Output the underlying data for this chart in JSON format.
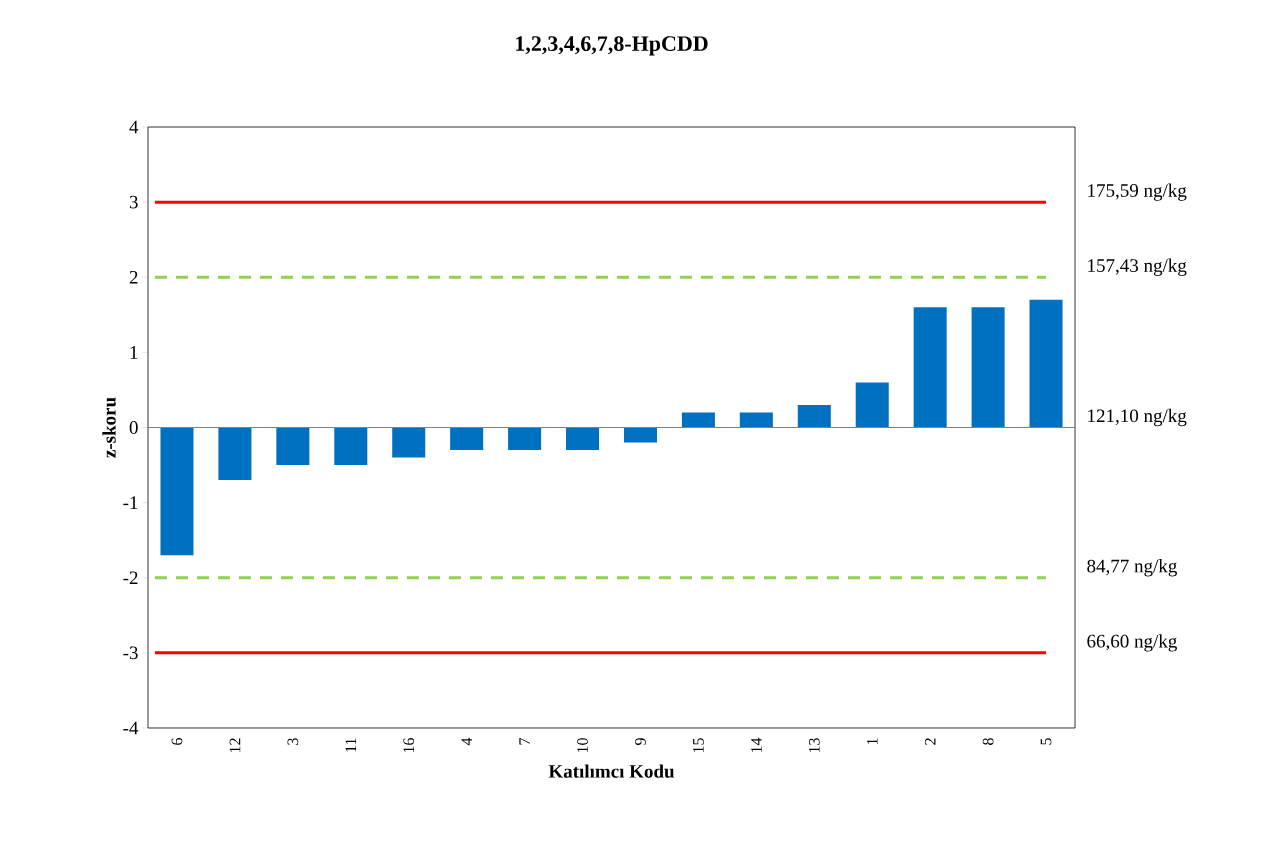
{
  "chart_data": {
    "type": "bar",
    "title": "1,2,3,4,6,7,8-HpCDD",
    "xlabel": "Katılımcı Kodu",
    "ylabel": "z-skoru",
    "categories": [
      "6",
      "12",
      "3",
      "11",
      "16",
      "4",
      "7",
      "10",
      "9",
      "15",
      "14",
      "13",
      "1",
      "2",
      "8",
      "5"
    ],
    "values": [
      -1.7,
      -0.7,
      -0.5,
      -0.5,
      -0.4,
      -0.3,
      -0.3,
      -0.3,
      -0.2,
      0.2,
      0.2,
      0.3,
      0.6,
      1.6,
      1.6,
      1.7
    ],
    "color": "#0070c0",
    "ylim": [
      -4,
      4
    ],
    "yticks": [
      -4,
      -3,
      -2,
      -1,
      0,
      1,
      2,
      3,
      4
    ],
    "ref_lines": [
      {
        "axis": "y",
        "value": 3,
        "label": "175,59 ng/kg",
        "color": "#ff0000",
        "line_style": "solid"
      },
      {
        "axis": "y",
        "value": 2,
        "label": "157,43 ng/kg",
        "color": "#92d050",
        "line_style": "dashed"
      },
      {
        "axis": "y",
        "value": 0,
        "label": "121,10 ng/kg",
        "color": "#808080",
        "line_style": "solid"
      },
      {
        "axis": "y",
        "value": -2,
        "label": "84,77 ng/kg",
        "color": "#92d050",
        "line_style": "dashed"
      },
      {
        "axis": "y",
        "value": -3,
        "label": "66,60 ng/kg",
        "color": "#ff0000",
        "line_style": "solid"
      }
    ]
  }
}
